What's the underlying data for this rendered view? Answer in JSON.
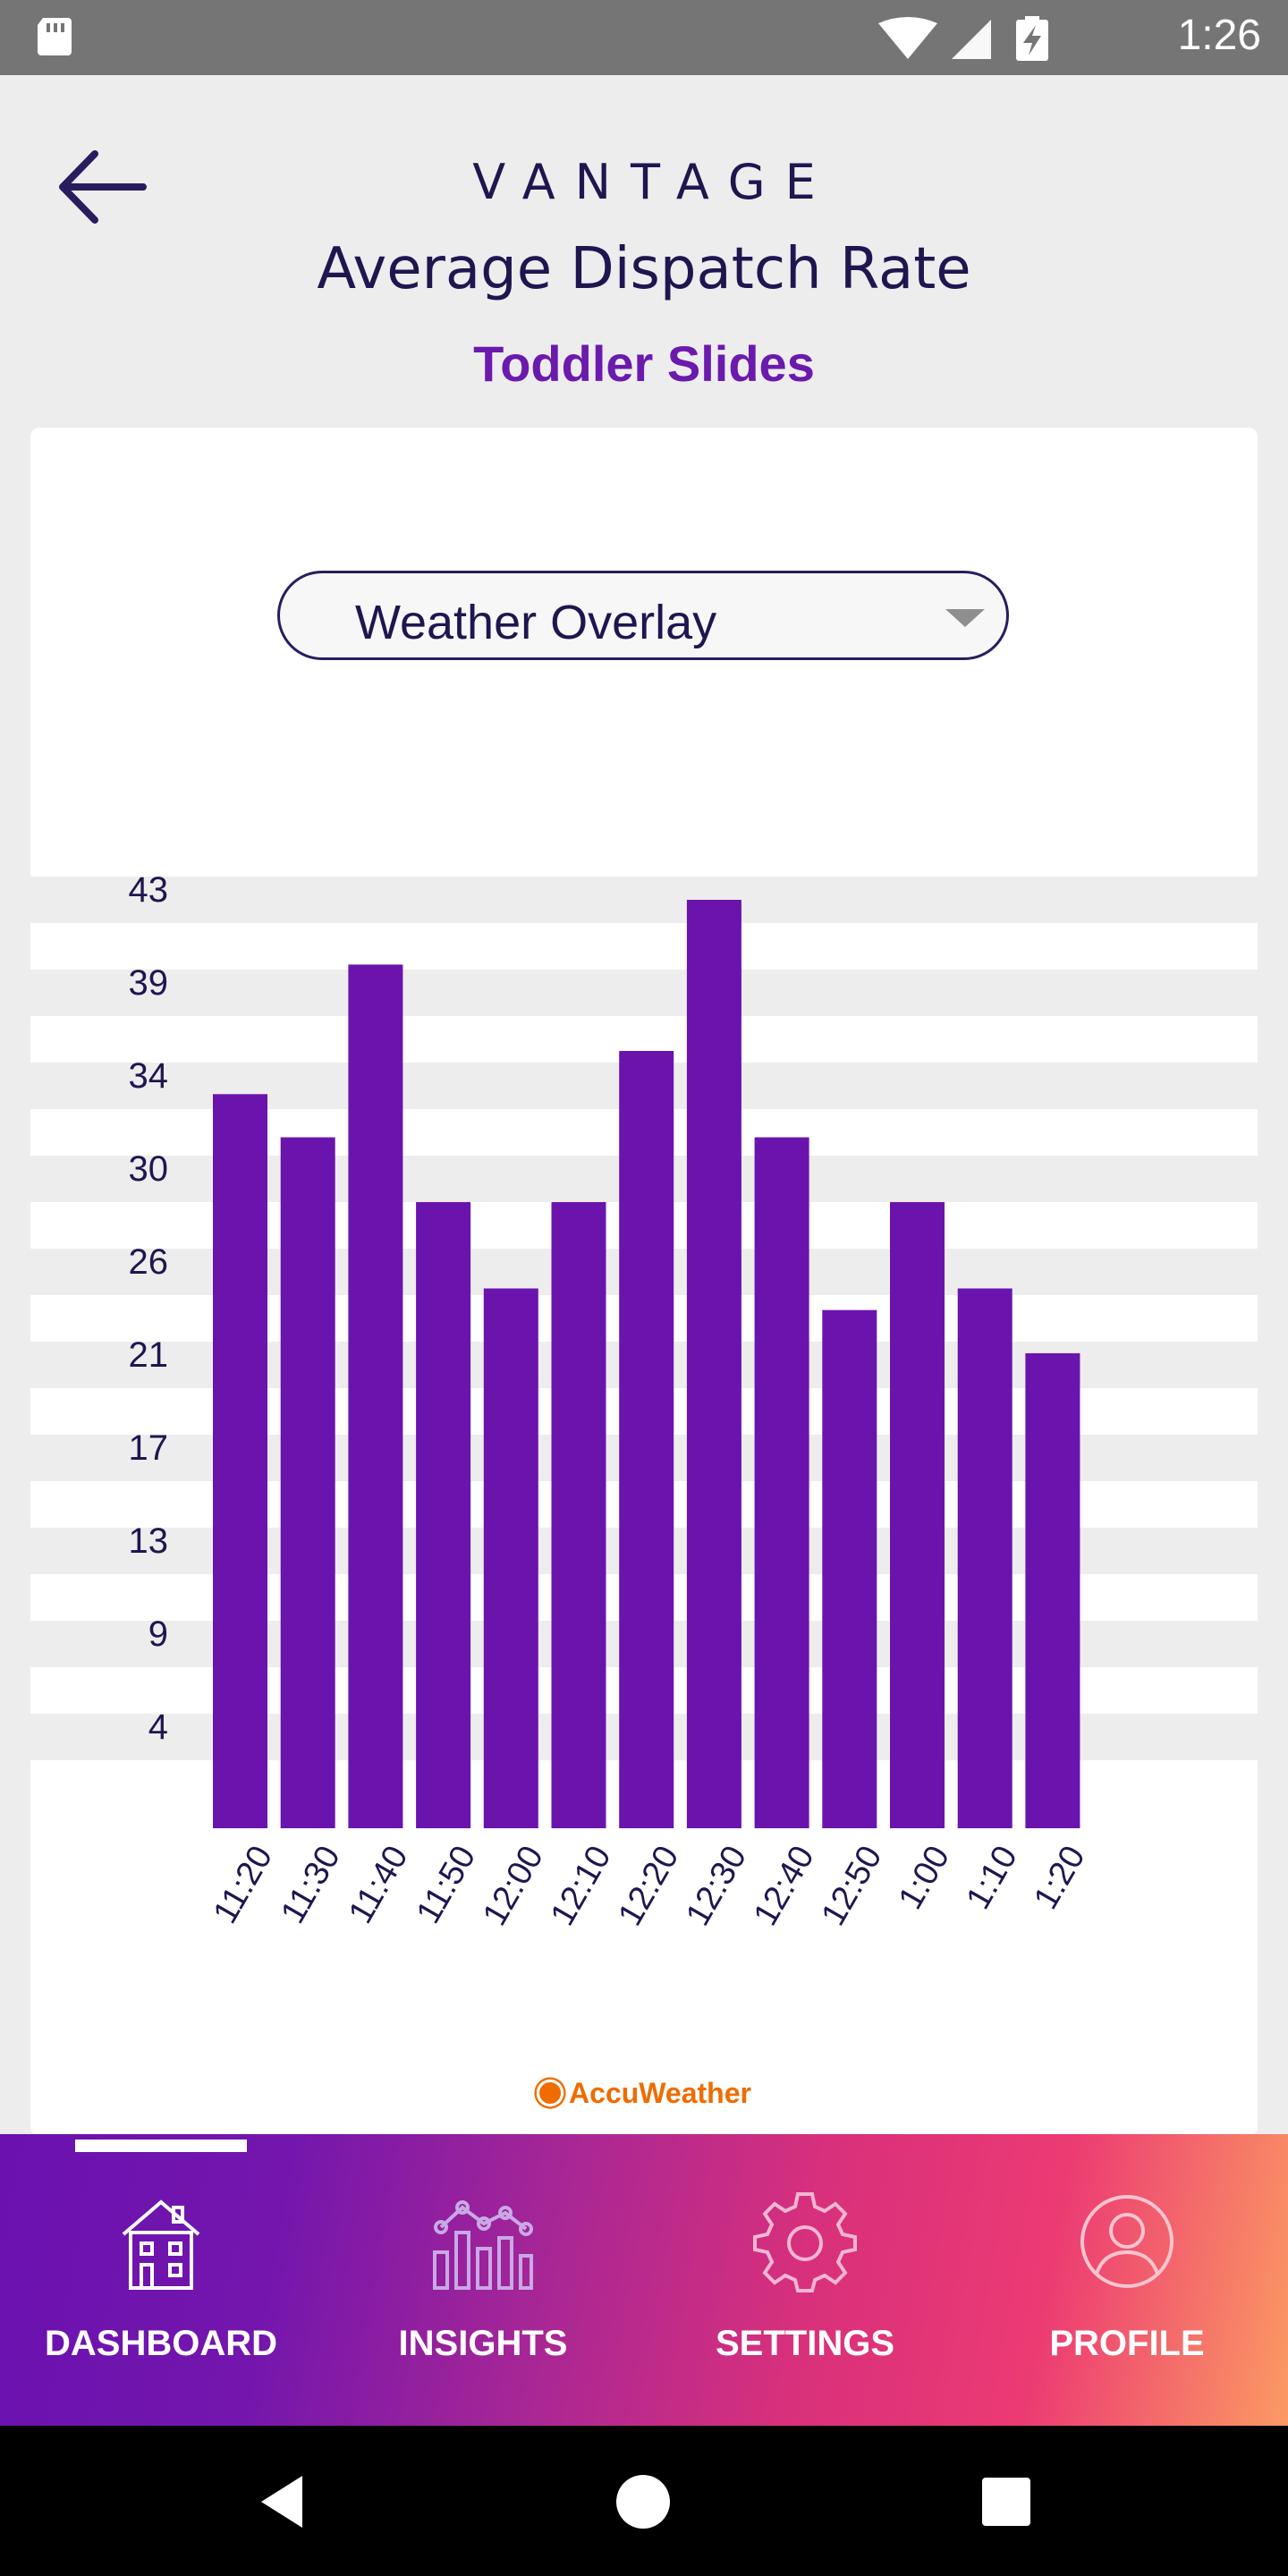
{
  "status_bar": {
    "time": "1:26"
  },
  "header": {
    "brand": "VANTAGE",
    "title": "Average Dispatch Rate",
    "subtitle": "Toddler Slides"
  },
  "dropdown": {
    "selected": "Weather Overlay"
  },
  "chart_data": {
    "type": "bar",
    "categories": [
      "11:20",
      "11:30",
      "11:40",
      "11:50",
      "12:00",
      "12:10",
      "12:20",
      "12:30",
      "12:40",
      "12:50",
      "1:00",
      "1:10",
      "1:20"
    ],
    "values": [
      34,
      32,
      40,
      29,
      25,
      29,
      36,
      43,
      32,
      24,
      29,
      25,
      22
    ],
    "y_ticks": [
      43,
      39,
      34,
      30,
      26,
      21,
      17,
      13,
      9,
      4
    ],
    "ylim": [
      0,
      43
    ],
    "bar_color": "#6a14ad",
    "grid": true
  },
  "attribution": "AccuWeather",
  "bottom_nav": {
    "items": [
      {
        "label": "DASHBOARD",
        "icon": "house-icon",
        "active": true
      },
      {
        "label": "INSIGHTS",
        "icon": "insights-chart-icon",
        "active": false
      },
      {
        "label": "SETTINGS",
        "icon": "gear-icon",
        "active": false
      },
      {
        "label": "PROFILE",
        "icon": "user-icon",
        "active": false
      }
    ]
  },
  "colors": {
    "accent": "#6a14ad",
    "text_dark": "#1f1650",
    "attribution": "#ef6c00"
  }
}
